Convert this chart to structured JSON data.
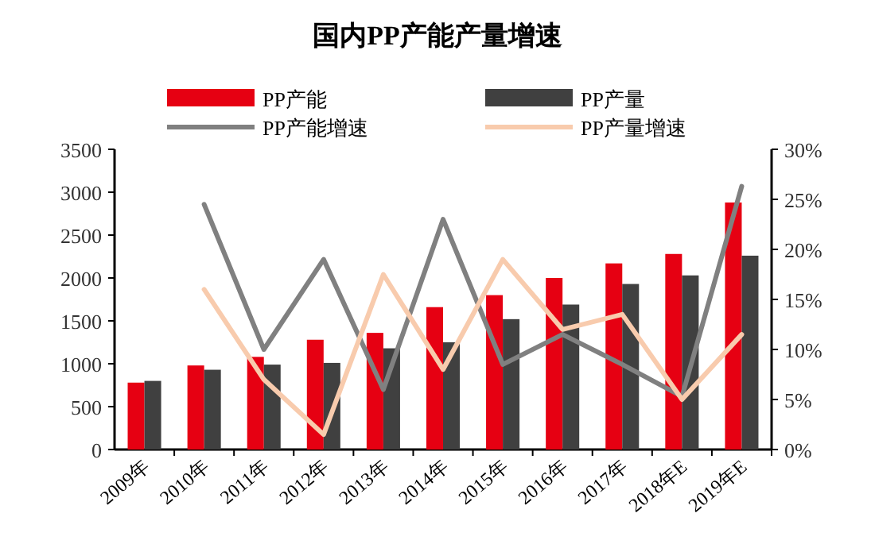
{
  "chart_data": {
    "type": "bar",
    "title": "国内PP产能产量增速",
    "categories": [
      "2009年",
      "2010年",
      "2011年",
      "2012年",
      "2013年",
      "2014年",
      "2015年",
      "2016年",
      "2017年",
      "2018年E",
      "2019年E"
    ],
    "series": [
      {
        "name": "PP产能",
        "color": "#e60012",
        "values": [
          780,
          980,
          1080,
          1280,
          1360,
          1660,
          1800,
          2000,
          2170,
          2280,
          2880
        ]
      },
      {
        "name": "PP产量",
        "color": "#404040",
        "values": [
          800,
          930,
          990,
          1010,
          1180,
          1250,
          1520,
          1690,
          1930,
          2030,
          2260
        ]
      },
      {
        "name": "PP产能增速",
        "type": "line",
        "axis": "y2",
        "color": "#808080",
        "values": [
          null,
          24.5,
          10,
          19,
          6,
          23,
          8.5,
          11.5,
          8.5,
          5.3,
          26.3
        ]
      },
      {
        "name": "PP产量增速",
        "type": "line",
        "axis": "y2",
        "color": "#f8cbad",
        "values": [
          null,
          16,
          7,
          1.5,
          17.5,
          8,
          19,
          12,
          13.5,
          5,
          11.5
        ]
      }
    ],
    "ylim": [
      0,
      3500
    ],
    "yticks": [
      0,
      500,
      1000,
      1500,
      2000,
      2500,
      3000,
      3500
    ],
    "y2lim": [
      0,
      30
    ],
    "y2ticks": [
      {
        "value": 0,
        "label": "0%"
      },
      {
        "value": 5,
        "label": "5%"
      },
      {
        "value": 10,
        "label": "10%"
      },
      {
        "value": 15,
        "label": "15%"
      },
      {
        "value": 20,
        "label": "20%"
      },
      {
        "value": 25,
        "label": "25%"
      },
      {
        "value": 30,
        "label": "30%"
      }
    ],
    "legend": "top",
    "grid": false
  }
}
